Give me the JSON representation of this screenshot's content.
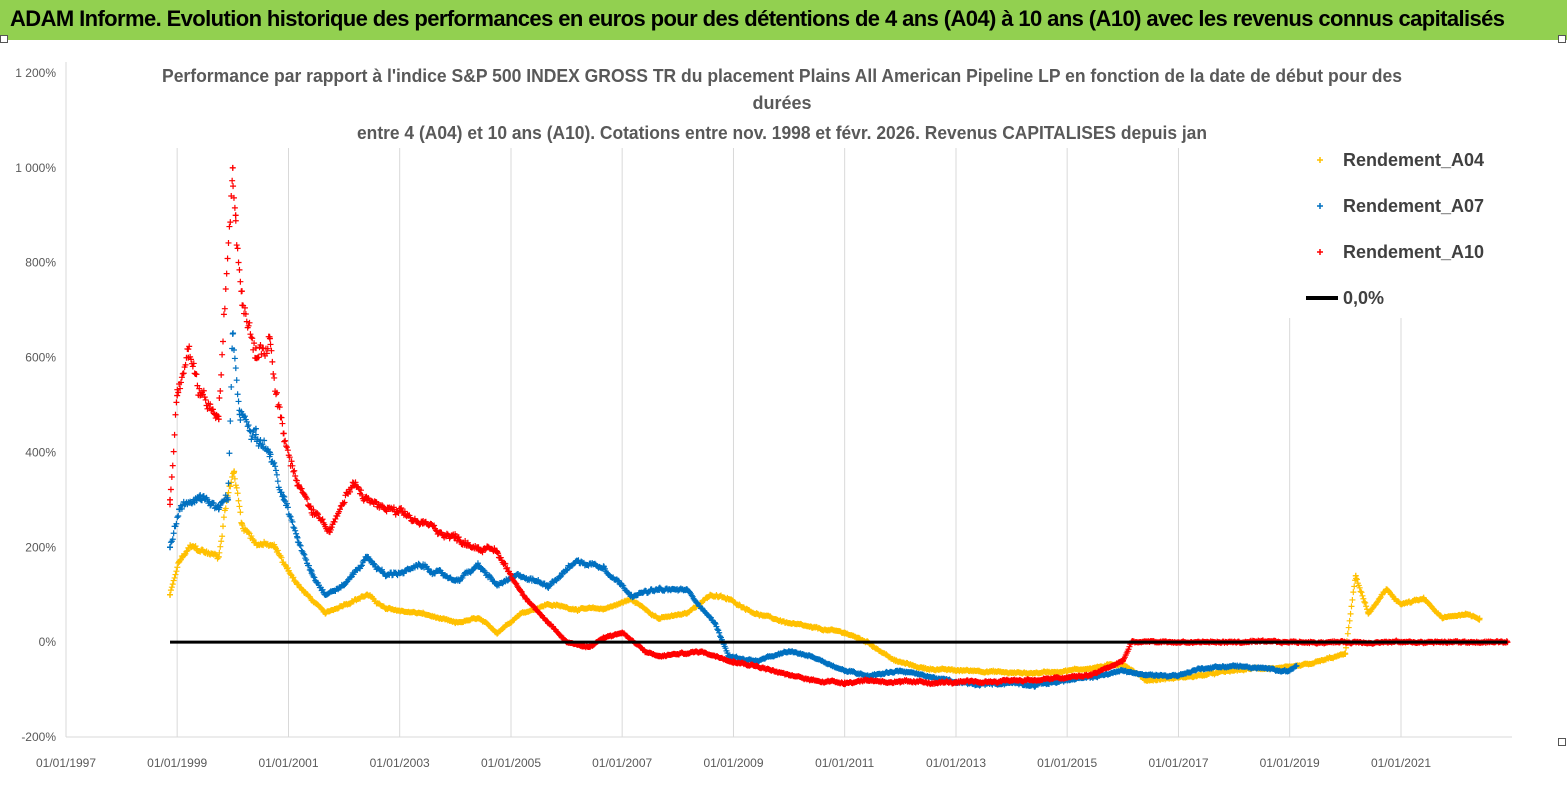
{
  "banner": {
    "text": "ADAM Informe. Evolution historique des performances en euros pour des détentions de 4 ans (A04) à 10 ans (A10) avec les revenus connus capitalisés",
    "color": "#92d050"
  },
  "chart_data": {
    "type": "scatter",
    "title_lines": [
      "Performance par rapport à l'indice S&P 500 INDEX GROSS TR  du placement Plains All American Pipeline LP en fonction de la date de début pour des",
      "durées",
      "entre 4 (A04) et 10 ans (A10). Cotations entre nov. 1998 et févr. 2026. Revenus CAPITALISES depuis jan"
    ],
    "x_axis": {
      "type": "date",
      "range": [
        "1997-01-01",
        "2022-12-31"
      ],
      "tick_labels": [
        "01/01/1997",
        "01/01/1999",
        "01/01/2001",
        "01/01/2003",
        "01/01/2005",
        "01/01/2007",
        "01/01/2009",
        "01/01/2011",
        "01/01/2013",
        "01/01/2015",
        "01/01/2017",
        "01/01/2019",
        "01/01/2021"
      ]
    },
    "y_axis": {
      "unit": "%",
      "range": [
        -200,
        1200
      ],
      "tick_values": [
        -200,
        0,
        200,
        400,
        600,
        800,
        1000,
        1200
      ],
      "tick_labels": [
        "-200%",
        "0%",
        "200%",
        "400%",
        "600%",
        "800%",
        "1 000%",
        "1 200%"
      ]
    },
    "grid": "vertical",
    "legend_position": "top-right",
    "series": [
      {
        "name": "Rendement_A04",
        "color": "#ffc000",
        "marker": "+",
        "points": [
          [
            "1998-11-15",
            100
          ],
          [
            "1999-01-15",
            170
          ],
          [
            "1999-04-01",
            200
          ],
          [
            "1999-07-01",
            190
          ],
          [
            "1999-10-01",
            180
          ],
          [
            "1999-11-20",
            300
          ],
          [
            "2000-01-10",
            360
          ],
          [
            "2000-03-01",
            250
          ],
          [
            "2000-06-01",
            210
          ],
          [
            "2000-10-01",
            200
          ],
          [
            "2001-01-01",
            150
          ],
          [
            "2001-04-01",
            110
          ],
          [
            "2001-09-01",
            60
          ],
          [
            "2002-01-01",
            80
          ],
          [
            "2002-06-01",
            100
          ],
          [
            "2002-10-01",
            70
          ],
          [
            "2003-06-01",
            60
          ],
          [
            "2004-01-01",
            40
          ],
          [
            "2004-06-01",
            50
          ],
          [
            "2004-10-01",
            20
          ],
          [
            "2005-03-01",
            60
          ],
          [
            "2005-09-01",
            80
          ],
          [
            "2006-03-01",
            70
          ],
          [
            "2006-09-01",
            70
          ],
          [
            "2007-03-01",
            90
          ],
          [
            "2007-09-01",
            50
          ],
          [
            "2008-03-01",
            60
          ],
          [
            "2008-08-01",
            100
          ],
          [
            "2008-12-01",
            90
          ],
          [
            "2009-06-01",
            60
          ],
          [
            "2010-01-01",
            40
          ],
          [
            "2010-06-01",
            30
          ],
          [
            "2011-01-01",
            20
          ],
          [
            "2011-06-01",
            0
          ],
          [
            "2011-12-01",
            -40
          ],
          [
            "2012-06-01",
            -55
          ],
          [
            "2013-01-01",
            -60
          ],
          [
            "2013-06-01",
            -60
          ],
          [
            "2014-01-01",
            -65
          ],
          [
            "2014-06-01",
            -65
          ],
          [
            "2015-01-01",
            -60
          ],
          [
            "2015-06-01",
            -55
          ],
          [
            "2016-01-01",
            -45
          ],
          [
            "2016-06-01",
            -80
          ],
          [
            "2017-01-01",
            -75
          ],
          [
            "2017-06-01",
            -70
          ],
          [
            "2018-01-01",
            -60
          ],
          [
            "2018-06-01",
            -55
          ],
          [
            "2019-01-01",
            -55
          ],
          [
            "2019-06-01",
            -45
          ],
          [
            "2020-01-01",
            -25
          ],
          [
            "2020-03-10",
            140
          ],
          [
            "2020-06-01",
            60
          ],
          [
            "2020-10-01",
            110
          ],
          [
            "2021-01-01",
            80
          ],
          [
            "2021-06-01",
            90
          ],
          [
            "2021-10-01",
            50
          ],
          [
            "2022-03-01",
            60
          ],
          [
            "2022-06-01",
            50
          ]
        ]
      },
      {
        "name": "Rendement_A07",
        "color": "#0070c0",
        "marker": "+",
        "points": [
          [
            "1998-11-15",
            200
          ],
          [
            "1999-01-15",
            280
          ],
          [
            "1999-06-01",
            310
          ],
          [
            "1999-10-01",
            280
          ],
          [
            "1999-12-01",
            300
          ],
          [
            "2000-01-01",
            650
          ],
          [
            "2000-02-15",
            480
          ],
          [
            "2000-06-01",
            450
          ],
          [
            "2000-09-01",
            400
          ],
          [
            "2000-12-01",
            300
          ],
          [
            "2001-03-01",
            220
          ],
          [
            "2001-06-01",
            150
          ],
          [
            "2001-09-01",
            100
          ],
          [
            "2002-01-01",
            120
          ],
          [
            "2002-06-01",
            180
          ],
          [
            "2002-10-01",
            140
          ],
          [
            "2003-06-01",
            160
          ],
          [
            "2004-01-01",
            130
          ],
          [
            "2004-06-01",
            160
          ],
          [
            "2004-10-01",
            120
          ],
          [
            "2005-03-01",
            140
          ],
          [
            "2005-09-01",
            120
          ],
          [
            "2006-03-01",
            170
          ],
          [
            "2006-09-01",
            160
          ],
          [
            "2007-03-01",
            100
          ],
          [
            "2007-09-01",
            110
          ],
          [
            "2008-03-01",
            110
          ],
          [
            "2008-09-01",
            40
          ],
          [
            "2008-12-01",
            -30
          ],
          [
            "2009-06-01",
            -40
          ],
          [
            "2010-01-01",
            -20
          ],
          [
            "2010-06-01",
            -30
          ],
          [
            "2011-01-01",
            -60
          ],
          [
            "2011-06-01",
            -70
          ],
          [
            "2012-01-01",
            -60
          ],
          [
            "2012-06-01",
            -70
          ],
          [
            "2013-01-01",
            -85
          ],
          [
            "2013-06-01",
            -90
          ],
          [
            "2014-01-01",
            -85
          ],
          [
            "2014-06-01",
            -90
          ],
          [
            "2015-01-01",
            -80
          ],
          [
            "2015-06-01",
            -75
          ],
          [
            "2016-01-01",
            -60
          ],
          [
            "2016-06-01",
            -70
          ],
          [
            "2017-01-01",
            -70
          ],
          [
            "2017-06-01",
            -55
          ],
          [
            "2018-01-01",
            -50
          ],
          [
            "2018-06-01",
            -55
          ],
          [
            "2019-01-01",
            -60
          ],
          [
            "2019-02-15",
            -50
          ]
        ]
      },
      {
        "name": "Rendement_A10",
        "color": "#ff0000",
        "marker": "+",
        "points": [
          [
            "1998-11-15",
            300
          ],
          [
            "1999-01-01",
            520
          ],
          [
            "1999-03-15",
            600
          ],
          [
            "1999-06-01",
            520
          ],
          [
            "1999-10-01",
            470
          ],
          [
            "2000-01-01",
            1000
          ],
          [
            "2000-01-20",
            900
          ],
          [
            "2000-03-01",
            740
          ],
          [
            "2000-06-01",
            620
          ],
          [
            "2000-09-01",
            640
          ],
          [
            "2000-12-01",
            440
          ],
          [
            "2001-03-01",
            330
          ],
          [
            "2001-06-01",
            280
          ],
          [
            "2001-10-01",
            240
          ],
          [
            "2002-03-01",
            330
          ],
          [
            "2002-06-01",
            300
          ],
          [
            "2002-10-01",
            280
          ],
          [
            "2003-06-01",
            250
          ],
          [
            "2004-01-01",
            220
          ],
          [
            "2004-06-01",
            200
          ],
          [
            "2004-10-01",
            190
          ],
          [
            "2005-03-01",
            110
          ],
          [
            "2005-09-01",
            40
          ],
          [
            "2006-01-01",
            0
          ],
          [
            "2006-06-01",
            -10
          ],
          [
            "2006-09-01",
            10
          ],
          [
            "2007-01-01",
            20
          ],
          [
            "2007-06-01",
            -20
          ],
          [
            "2007-09-01",
            -30
          ],
          [
            "2008-01-01",
            -25
          ],
          [
            "2008-06-01",
            -20
          ],
          [
            "2009-01-01",
            -40
          ],
          [
            "2009-06-01",
            -50
          ],
          [
            "2010-01-01",
            -70
          ],
          [
            "2010-06-01",
            -80
          ],
          [
            "2011-01-01",
            -85
          ],
          [
            "2011-06-01",
            -80
          ],
          [
            "2012-01-01",
            -85
          ],
          [
            "2012-06-01",
            -85
          ],
          [
            "2013-01-01",
            -85
          ],
          [
            "2013-06-01",
            -85
          ],
          [
            "2014-01-01",
            -80
          ],
          [
            "2014-06-01",
            -80
          ],
          [
            "2015-01-01",
            -75
          ],
          [
            "2015-06-01",
            -70
          ],
          [
            "2016-01-01",
            -40
          ],
          [
            "2016-03-01",
            0
          ],
          [
            "2022-12-01",
            0
          ]
        ]
      },
      {
        "name": "0,0%",
        "color": "#000000",
        "marker": "line",
        "points": [
          [
            "1998-11-15",
            0
          ],
          [
            "2022-12-01",
            0
          ]
        ]
      }
    ]
  }
}
